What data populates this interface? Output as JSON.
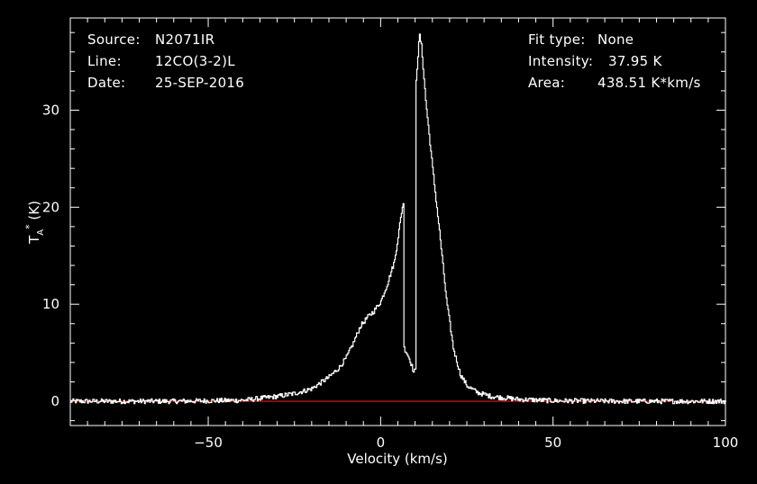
{
  "header": {
    "source_label": "Source:",
    "source_value": "N2071IR",
    "line_label": "Line:",
    "line_value": "12CO(3-2)L",
    "date_label": "Date:",
    "date_value": "25-SEP-2016",
    "fit_label": "Fit type:",
    "fit_value": "None",
    "intensity_label": "Intensity:",
    "intensity_value": "37.95 K",
    "area_label": "Area:",
    "area_value": "438.51 K*km/s"
  },
  "colors": {
    "background": "#000000",
    "foreground": "#ffffff",
    "baseline": "#ff2020"
  },
  "chart_data": {
    "type": "line",
    "xlabel": "Velocity (km/s)",
    "ylabel": "TA* (K)",
    "xlim": [
      -90,
      100
    ],
    "ylim": [
      -2.5,
      39.5
    ],
    "x_ticks": [
      -50,
      0,
      50,
      100
    ],
    "x_tick_labels": [
      "−50",
      "0",
      "50",
      "100"
    ],
    "y_ticks": [
      0,
      10,
      20,
      30
    ],
    "y_tick_labels": [
      "0",
      "10",
      "20",
      "30"
    ],
    "baseline_y": 0,
    "series": [
      {
        "x": [
          -90,
          -60,
          -40,
          -30,
          -25,
          -20,
          -15,
          -12,
          -10,
          -8,
          -6,
          -4,
          -2,
          0,
          2,
          4,
          5,
          6,
          6.6,
          6.7,
          7.5,
          8.5,
          9.5,
          10.1,
          10.2,
          11.2,
          11.8,
          13,
          15,
          17,
          19,
          21,
          23,
          25,
          28,
          32,
          40,
          50,
          70,
          100
        ],
        "y": [
          0,
          0,
          0.1,
          0.5,
          0.8,
          1.3,
          2.5,
          3.5,
          4.5,
          6.0,
          7.7,
          8.6,
          9.3,
          10.3,
          12.2,
          14.5,
          17.0,
          19.5,
          20.7,
          5.5,
          5.0,
          4.2,
          3.0,
          3.2,
          33.0,
          37.8,
          36.5,
          31.0,
          24.0,
          17.5,
          10.5,
          5.5,
          2.8,
          1.6,
          0.9,
          0.5,
          0.2,
          0.05,
          0,
          0
        ]
      }
    ]
  }
}
